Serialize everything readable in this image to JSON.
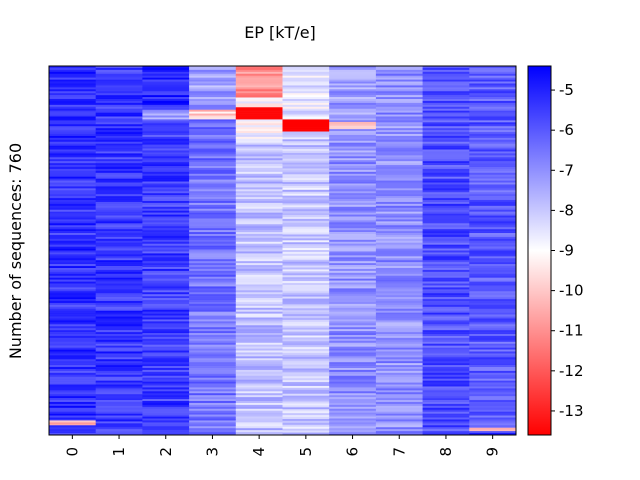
{
  "chart_data": {
    "type": "heatmap",
    "title": "EP [kT/e]",
    "xlabel": "",
    "ylabel": "Number of sequences: 760",
    "x_categories": [
      "0",
      "1",
      "2",
      "3",
      "4",
      "5",
      "6",
      "7",
      "8",
      "9"
    ],
    "n_rows": 760,
    "colormap": "bwr_r",
    "colors": {
      "low": "#ff0000",
      "mid": "#ffffff",
      "high": "#0000ff"
    },
    "colorbar": {
      "range": [
        -13.6,
        -4.4
      ],
      "ticks": [
        -5,
        -6,
        -7,
        -8,
        -9,
        -10,
        -11,
        -12,
        -13
      ],
      "tick_labels": [
        "-5",
        "-6",
        "-7",
        "-8",
        "-9",
        "-10",
        "-11",
        "-12",
        "-13"
      ]
    },
    "approximate_column_segments": [
      {
        "column": "0",
        "segments": [
          {
            "rows": [
              0,
              730
            ],
            "mean_value": -5.3
          },
          {
            "rows": [
              730,
              740
            ],
            "mean_value": -10.5
          },
          {
            "rows": [
              740,
              760
            ],
            "mean_value": -5.5
          }
        ]
      },
      {
        "column": "1",
        "segments": [
          {
            "rows": [
              0,
              760
            ],
            "mean_value": -5.4
          }
        ]
      },
      {
        "column": "2",
        "segments": [
          {
            "rows": [
              0,
              90
            ],
            "mean_value": -5.0
          },
          {
            "rows": [
              90,
              110
            ],
            "mean_value": -7.5
          },
          {
            "rows": [
              110,
              760
            ],
            "mean_value": -5.5
          }
        ]
      },
      {
        "column": "3",
        "segments": [
          {
            "rows": [
              0,
              90
            ],
            "mean_value": -7.3
          },
          {
            "rows": [
              90,
              110
            ],
            "mean_value": -9.9
          },
          {
            "rows": [
              110,
              760
            ],
            "mean_value": -6.5
          }
        ]
      },
      {
        "column": "4",
        "segments": [
          {
            "rows": [
              0,
              65
            ],
            "mean_value": -10.9
          },
          {
            "rows": [
              65,
              85
            ],
            "mean_value": -8.8
          },
          {
            "rows": [
              85,
              110
            ],
            "mean_value": -13.5
          },
          {
            "rows": [
              110,
              150
            ],
            "mean_value": -8.9
          },
          {
            "rows": [
              150,
              760
            ],
            "mean_value": -7.9
          }
        ]
      },
      {
        "column": "5",
        "segments": [
          {
            "rows": [
              0,
              110
            ],
            "mean_value": -8.5
          },
          {
            "rows": [
              110,
              135
            ],
            "mean_value": -13.6
          },
          {
            "rows": [
              135,
              760
            ],
            "mean_value": -8.0
          }
        ]
      },
      {
        "column": "6",
        "segments": [
          {
            "rows": [
              0,
              115
            ],
            "mean_value": -7.2
          },
          {
            "rows": [
              115,
              130
            ],
            "mean_value": -9.8
          },
          {
            "rows": [
              130,
              760
            ],
            "mean_value": -7.0
          }
        ]
      },
      {
        "column": "7",
        "segments": [
          {
            "rows": [
              0,
              760
            ],
            "mean_value": -7.0
          }
        ]
      },
      {
        "column": "8",
        "segments": [
          {
            "rows": [
              0,
              760
            ],
            "mean_value": -5.8
          }
        ]
      },
      {
        "column": "9",
        "segments": [
          {
            "rows": [
              0,
              745
            ],
            "mean_value": -6.0
          },
          {
            "rows": [
              745,
              752
            ],
            "mean_value": -11.0
          },
          {
            "rows": [
              752,
              760
            ],
            "mean_value": -5.5
          }
        ]
      }
    ],
    "grid": false,
    "legend": "colorbar-right"
  }
}
